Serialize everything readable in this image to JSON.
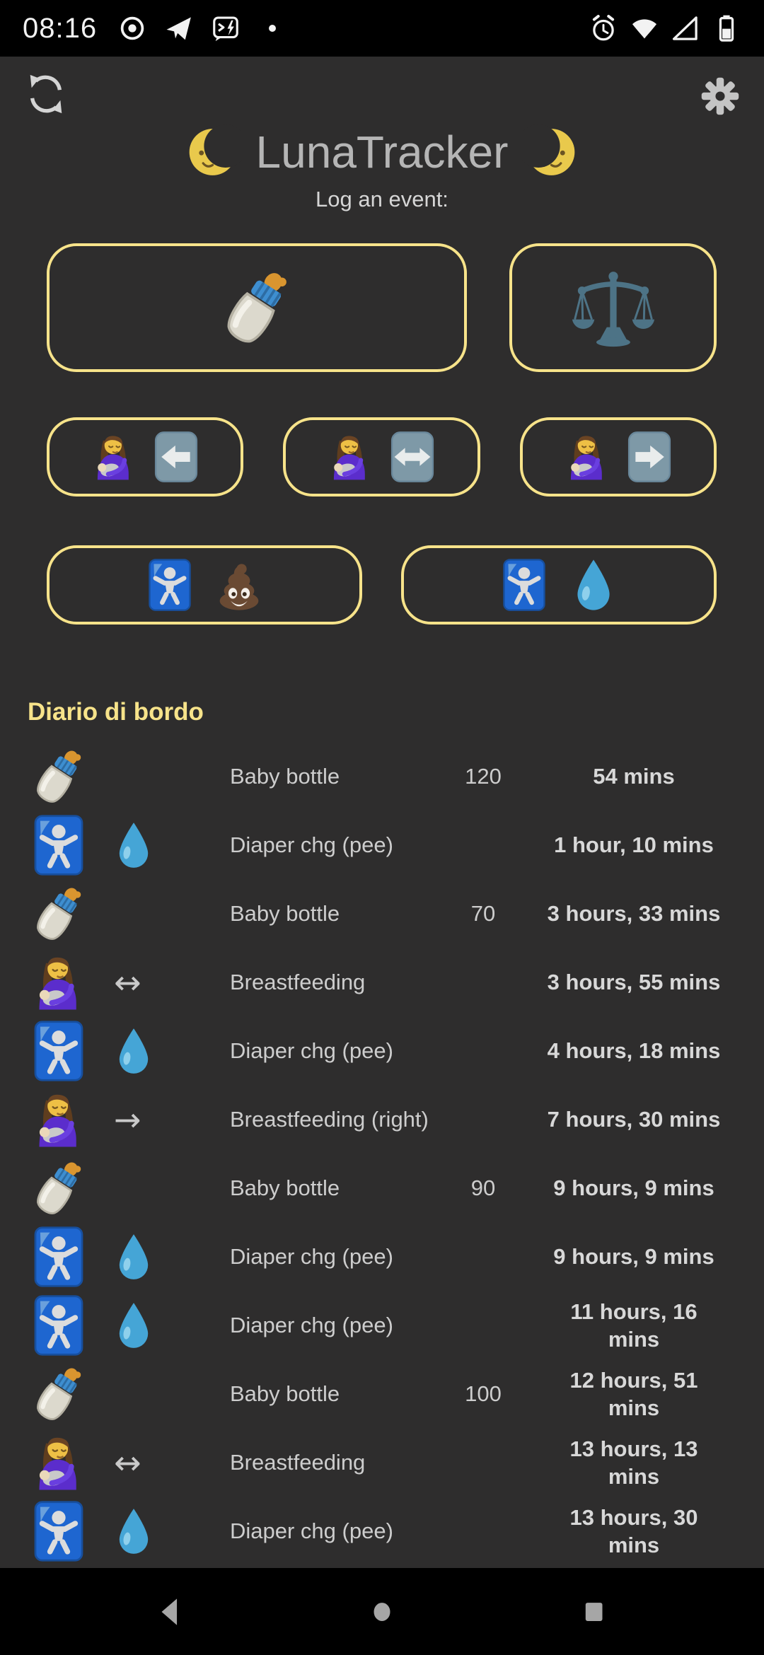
{
  "colors": {
    "background": "#2e2d2d",
    "status_bar": "#000000",
    "accent_yellow_border": "#f7e38a",
    "log_title_yellow": "#f7e38a",
    "title_gray": "#b5b5b5",
    "text_gray": "#cdcdcd"
  },
  "status_bar": {
    "time": "08:16",
    "left_icons": [
      "record-icon",
      "telegram-icon",
      "chat-flash-icon",
      "notification-dot-icon"
    ],
    "right_icons": [
      "alarm-icon",
      "wifi-icon",
      "signal-icon",
      "battery-icon"
    ]
  },
  "app_bar": {
    "sync_icon": "sync-icon",
    "settings_icon": "gear-icon"
  },
  "header": {
    "moon_left_icon": "moon-left-icon",
    "title": "LunaTracker",
    "moon_right_icon": "moon-right-icon",
    "subtitle": "Log an event:"
  },
  "event_buttons": {
    "rows": [
      [
        {
          "name": "log-bottle-button",
          "icons": [
            "bottle-icon"
          ]
        },
        {
          "name": "log-weight-button",
          "icons": [
            "scale-icon"
          ]
        }
      ],
      [
        {
          "name": "log-breastfeeding-left-button",
          "icons": [
            "breastfeeding-icon",
            "arrow-left-btn-icon"
          ]
        },
        {
          "name": "log-breastfeeding-both-button",
          "icons": [
            "breastfeeding-icon",
            "arrow-both-btn-icon"
          ]
        },
        {
          "name": "log-breastfeeding-right-button",
          "icons": [
            "breastfeeding-icon",
            "arrow-right-btn-icon"
          ]
        }
      ],
      [
        {
          "name": "log-diaper-poo-button",
          "icons": [
            "baby-sign-icon",
            "poo-icon"
          ]
        },
        {
          "name": "log-diaper-pee-button",
          "icons": [
            "baby-sign-icon",
            "droplet-icon"
          ]
        }
      ]
    ]
  },
  "log": {
    "title": "Diario di bordo",
    "entries": [
      {
        "icon": "bottle-icon",
        "icon2": "",
        "arrow": "",
        "label": "Baby bottle",
        "qty": "120",
        "time": "54 mins"
      },
      {
        "icon": "baby-sign-icon",
        "icon2": "droplet-icon",
        "arrow": "",
        "label": "Diaper chg (pee)",
        "qty": "",
        "time": "1 hour, 10 mins"
      },
      {
        "icon": "bottle-icon",
        "icon2": "",
        "arrow": "",
        "label": "Baby bottle",
        "qty": "70",
        "time": "3 hours, 33 mins"
      },
      {
        "icon": "breastfeeding-icon",
        "icon2": "",
        "arrow": "↔",
        "label": "Breastfeeding",
        "qty": "",
        "time": "3 hours, 55 mins"
      },
      {
        "icon": "baby-sign-icon",
        "icon2": "droplet-icon",
        "arrow": "",
        "label": "Diaper chg (pee)",
        "qty": "",
        "time": "4 hours, 18 mins"
      },
      {
        "icon": "breastfeeding-icon",
        "icon2": "",
        "arrow": "→",
        "label": "Breastfeeding (right)",
        "qty": "",
        "time": "7 hours, 30 mins"
      },
      {
        "icon": "bottle-icon",
        "icon2": "",
        "arrow": "",
        "label": "Baby bottle",
        "qty": "90",
        "time": "9 hours, 9 mins"
      },
      {
        "icon": "baby-sign-icon",
        "icon2": "droplet-icon",
        "arrow": "",
        "label": "Diaper chg (pee)",
        "qty": "",
        "time": "9 hours, 9 mins"
      },
      {
        "icon": "baby-sign-icon",
        "icon2": "droplet-icon",
        "arrow": "",
        "label": "Diaper chg (pee)",
        "qty": "",
        "time": "11 hours, 16 mins"
      },
      {
        "icon": "bottle-icon",
        "icon2": "",
        "arrow": "",
        "label": "Baby bottle",
        "qty": "100",
        "time": "12 hours, 51 mins"
      },
      {
        "icon": "breastfeeding-icon",
        "icon2": "",
        "arrow": "↔",
        "label": "Breastfeeding",
        "qty": "",
        "time": "13 hours, 13 mins"
      },
      {
        "icon": "baby-sign-icon",
        "icon2": "droplet-icon",
        "arrow": "",
        "label": "Diaper chg (pee)",
        "qty": "",
        "time": "13 hours, 30 mins"
      }
    ]
  },
  "nav_bar": {
    "icons": [
      "nav-back-icon",
      "nav-home-icon",
      "nav-recents-icon"
    ]
  }
}
